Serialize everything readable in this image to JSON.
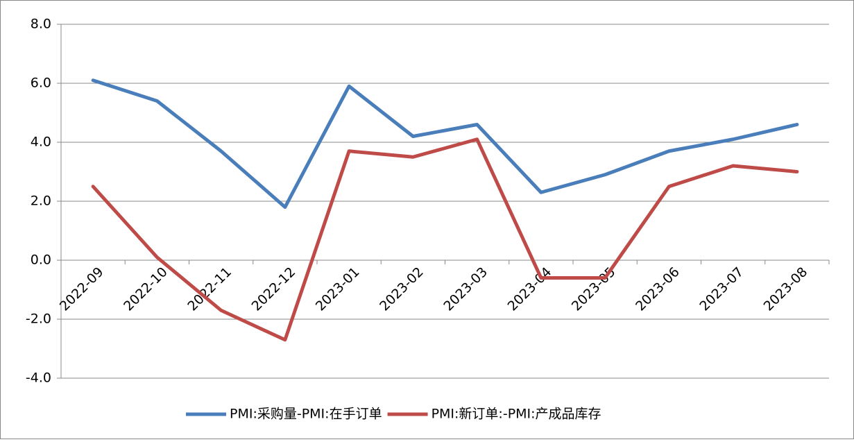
{
  "chart_data": {
    "type": "line",
    "categories": [
      "2022-09",
      "2022-10",
      "2022-11",
      "2022-12",
      "2023-01",
      "2023-02",
      "2023-03",
      "2023-04",
      "2023-05",
      "2023-06",
      "2023-07",
      "2023-08"
    ],
    "series": [
      {
        "name": "PMI:采购量-PMI:在手订单",
        "color": "#4a7ebb",
        "values": [
          6.1,
          5.4,
          3.7,
          1.8,
          5.9,
          4.2,
          4.6,
          2.3,
          2.9,
          3.7,
          4.1,
          4.6
        ]
      },
      {
        "name": "PMI:新订单:-PMI:产成品库存",
        "color": "#be4b48",
        "values": [
          2.5,
          0.1,
          -1.7,
          -2.7,
          3.7,
          3.5,
          4.1,
          -0.6,
          -0.6,
          2.5,
          3.2,
          3.0
        ]
      }
    ],
    "ylim": [
      -4,
      8
    ],
    "yticks": [
      {
        "value": -4,
        "label": "-4.0"
      },
      {
        "value": -2,
        "label": "-2.0"
      },
      {
        "value": 0,
        "label": "0.0"
      },
      {
        "value": 2,
        "label": "2.0"
      },
      {
        "value": 4,
        "label": "4.0"
      },
      {
        "value": 6,
        "label": "6.0"
      },
      {
        "value": 8,
        "label": "8.0"
      }
    ],
    "grid": true,
    "legend": "bottom"
  }
}
